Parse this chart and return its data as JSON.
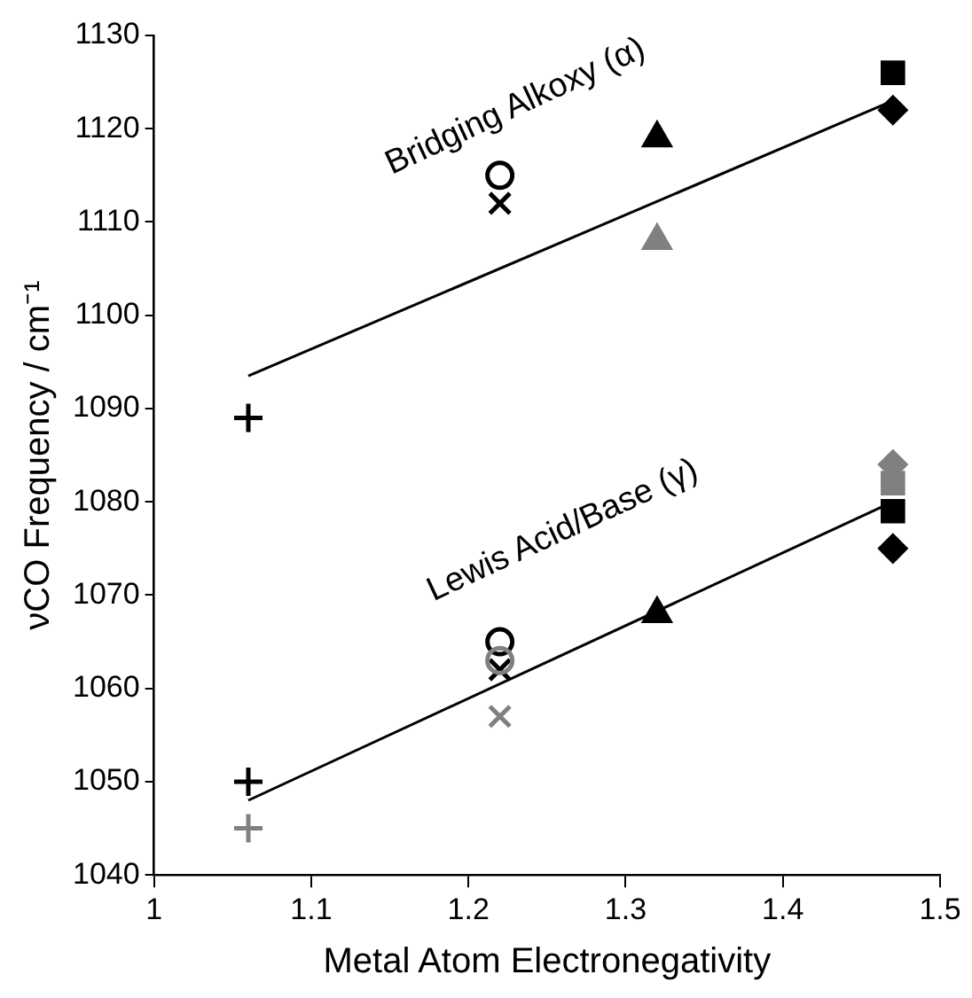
{
  "chart_data": {
    "type": "scatter",
    "xlabel": "Metal Atom Electronegativity",
    "ylabel": "νCO Frequency / cm⁻¹",
    "xlim": [
      1,
      1.5
    ],
    "xticks": [
      1,
      1.1,
      1.2,
      1.3,
      1.4,
      1.5
    ],
    "ylim": [
      1040,
      1130
    ],
    "yticks": [
      1040,
      1050,
      1060,
      1070,
      1080,
      1090,
      1100,
      1110,
      1120,
      1130
    ],
    "grid": false,
    "legend": false,
    "annotations": [
      "Bridging Alkoxy (α)",
      "Lewis Acid/Base (γ)"
    ],
    "series": [
      {
        "type": "line",
        "color": "#000000",
        "marker": "none",
        "x": [
          1.06,
          1.47
        ],
        "values": [
          1093.5,
          1123
        ]
      },
      {
        "type": "line",
        "color": "#000000",
        "marker": "none",
        "x": [
          1.06,
          1.47
        ],
        "values": [
          1048,
          1080
        ]
      },
      {
        "color": "#000000",
        "marker": "cross",
        "x": [
          1.06,
          1.06
        ],
        "values": [
          1089,
          1050
        ]
      },
      {
        "color": "#808080",
        "marker": "cross",
        "x": [
          1.06
        ],
        "values": [
          1045
        ]
      },
      {
        "color": "#808080",
        "marker": "circle",
        "x": [
          1.22
        ],
        "values": [
          1063
        ]
      },
      {
        "color": "#000000",
        "marker": "circle",
        "x": [
          1.22,
          1.22
        ],
        "values": [
          1115,
          1065
        ]
      },
      {
        "color": "#808080",
        "marker": "x",
        "x": [
          1.22
        ],
        "values": [
          1057
        ]
      },
      {
        "color": "#000000",
        "marker": "x",
        "x": [
          1.22,
          1.22
        ],
        "values": [
          1112,
          1062
        ]
      },
      {
        "color": "#000000",
        "marker": "triangle",
        "x": [
          1.32,
          1.32
        ],
        "values": [
          1119,
          1068
        ]
      },
      {
        "color": "#808080",
        "marker": "triangle",
        "x": [
          1.32
        ],
        "values": [
          1108
        ]
      },
      {
        "color": "#808080",
        "marker": "diamond",
        "x": [
          1.47
        ],
        "values": [
          1084
        ]
      },
      {
        "color": "#808080",
        "marker": "square",
        "x": [
          1.47
        ],
        "values": [
          1082
        ]
      },
      {
        "color": "#000000",
        "marker": "square",
        "x": [
          1.47,
          1.47
        ],
        "values": [
          1126,
          1079
        ]
      },
      {
        "color": "#000000",
        "marker": "diamond",
        "x": [
          1.47,
          1.47
        ],
        "values": [
          1122,
          1075
        ]
      }
    ]
  }
}
